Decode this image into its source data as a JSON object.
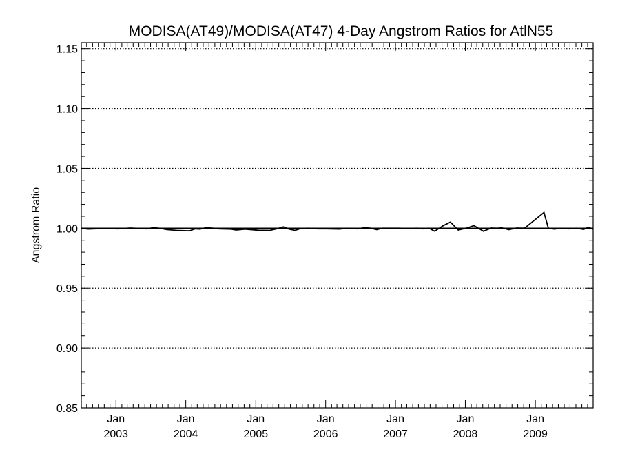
{
  "chart_data": {
    "type": "line",
    "title": "MODISA(AT49)/MODISA(AT47) 4-Day Angstrom Ratios for AtlN55",
    "xlabel": "",
    "ylabel": "Angstrom Ratio",
    "ylim": [
      0.85,
      1.155
    ],
    "xlim": [
      "2002-07-04",
      "2009-10-30"
    ],
    "y_ticks": [
      "0.85",
      "0.90",
      "0.95",
      "1.00",
      "1.05",
      "1.10",
      "1.15"
    ],
    "x_ticks": [
      {
        "month": "Jan",
        "year": "2003",
        "date": "2003-01-01"
      },
      {
        "month": "Jan",
        "year": "2004",
        "date": "2004-01-01"
      },
      {
        "month": "Jan",
        "year": "2005",
        "date": "2005-01-01"
      },
      {
        "month": "Jan",
        "year": "2006",
        "date": "2006-01-01"
      },
      {
        "month": "Jan",
        "year": "2007",
        "date": "2007-01-01"
      },
      {
        "month": "Jan",
        "year": "2008",
        "date": "2008-01-01"
      },
      {
        "month": "Jan",
        "year": "2009",
        "date": "2009-01-01"
      }
    ],
    "grid": "dotted horizontal at major y ticks",
    "reference_line": 1.0,
    "series": [
      {
        "x": [
          "2002-07-04",
          "2002-08-10",
          "2002-09-10",
          "2002-11-05",
          "2003-01-15",
          "2003-03-15",
          "2003-05-10",
          "2003-06-10",
          "2003-07-15",
          "2003-08-15",
          "2003-09-25",
          "2003-11-15",
          "2004-01-20",
          "2004-02-20",
          "2004-03-15",
          "2004-04-15",
          "2004-05-25",
          "2004-06-20",
          "2004-08-25",
          "2004-09-20",
          "2004-11-05",
          "2005-01-15",
          "2005-03-15",
          "2005-04-20",
          "2005-05-25",
          "2005-06-25",
          "2005-07-25",
          "2005-08-25",
          "2005-10-05",
          "2005-11-20",
          "2006-01-05",
          "2006-03-15",
          "2006-04-20",
          "2006-06-15",
          "2006-07-25",
          "2006-08-25",
          "2006-09-25",
          "2006-10-25",
          "2007-01-15",
          "2007-03-15",
          "2007-04-20",
          "2007-05-25",
          "2007-06-25",
          "2007-07-25",
          "2007-09-05",
          "2007-10-15",
          "2007-11-25",
          "2008-01-05",
          "2008-02-15",
          "2008-04-05",
          "2008-05-15",
          "2008-06-15",
          "2008-07-10",
          "2008-08-15",
          "2008-09-25",
          "2008-11-05",
          "2009-02-15",
          "2009-03-10",
          "2009-04-10",
          "2009-05-15",
          "2009-06-25",
          "2009-08-05",
          "2009-09-10",
          "2009-10-05",
          "2009-10-30"
        ],
        "values": [
          1.0,
          0.9993,
          0.9995,
          0.9997,
          0.9995,
          1.0002,
          0.9998,
          0.9995,
          1.0005,
          1.0,
          0.9988,
          0.9982,
          0.9978,
          0.9995,
          0.9992,
          1.0005,
          1.0,
          0.9995,
          0.9992,
          0.9985,
          0.9992,
          0.9983,
          0.9982,
          0.9995,
          1.0012,
          0.9992,
          0.9982,
          0.9998,
          1.0,
          0.9995,
          0.9995,
          0.9993,
          1.0,
          0.9995,
          1.0005,
          1.0,
          0.9988,
          1.0,
          1.0,
          0.9998,
          1.0,
          0.9995,
          1.0,
          0.9975,
          1.002,
          1.0052,
          0.9985,
          1.0,
          1.0022,
          0.9975,
          1.0002,
          1.0,
          1.0003,
          0.9988,
          1.0002,
          1.0,
          1.0132,
          1.0,
          0.9993,
          1.0,
          0.9995,
          1.0,
          0.999,
          1.0008,
          0.9993
        ]
      }
    ]
  }
}
